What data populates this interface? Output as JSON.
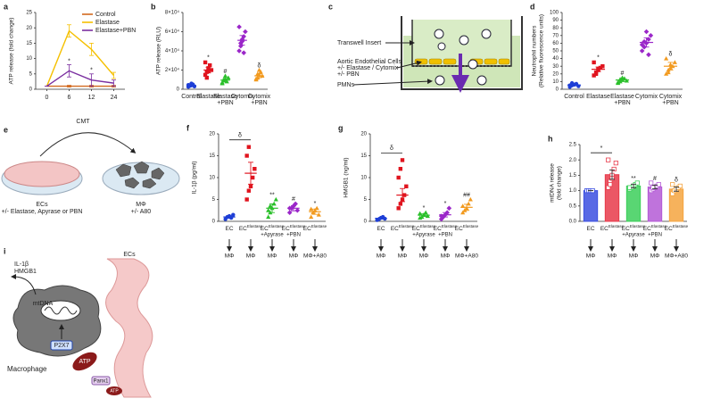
{
  "chart_data": [
    {
      "type": "line",
      "label": "a",
      "ylabel": "ATP release (fold change)",
      "categories": [
        "0",
        "6",
        "12",
        "24"
      ],
      "ylim": [
        0,
        25
      ],
      "yticks": [
        0,
        5,
        10,
        15,
        20,
        25
      ],
      "legend": "upper right",
      "series": [
        {
          "name": "Control",
          "color": "#d2691e",
          "values": [
            1,
            1,
            1,
            1
          ],
          "errors": [
            0,
            0.3,
            0.3,
            0.3
          ],
          "annotations": [
            null,
            null,
            null,
            null
          ]
        },
        {
          "name": "Elastase",
          "color": "#f5c000",
          "values": [
            1,
            19,
            13,
            4.5
          ],
          "errors": [
            0,
            2,
            2,
            1
          ],
          "annotations": [
            null,
            null,
            null,
            null
          ]
        },
        {
          "name": "Elastase+PBN",
          "color": "#7b2fa0",
          "values": [
            1,
            6,
            3,
            2
          ],
          "errors": [
            0,
            2,
            2,
            1
          ],
          "annotations": [
            null,
            "*",
            "*",
            null
          ]
        }
      ]
    },
    {
      "type": "dotplot",
      "label": "b",
      "ylabel": "ATP release (RLU)",
      "ylim": [
        0,
        80000
      ],
      "yticks": [
        0,
        {
          "value": 20000,
          "label": "2×10⁴"
        },
        {
          "value": 40000,
          "label": "4×10⁴"
        },
        {
          "value": 60000,
          "label": "6×10⁴"
        },
        {
          "value": 80000,
          "label": "8×10⁴"
        }
      ],
      "categories": [
        [
          "Control"
        ],
        [
          "Elastase"
        ],
        [
          "Elastase",
          "+PBN"
        ],
        [
          "Cytomix"
        ],
        [
          "Cytomix",
          "+PBN"
        ]
      ],
      "colors": [
        "#1f3fd6",
        "#e0141e",
        "#2bc02b",
        "#9b27c9",
        "#f29a1f"
      ],
      "points": [
        [
          2500,
          3500,
          4000,
          5000,
          3000,
          4500,
          3800,
          6000
        ],
        [
          15000,
          18000,
          22000,
          25000,
          20000,
          28000,
          12000,
          19000
        ],
        [
          6000,
          9000,
          11000,
          8000,
          12000,
          7000,
          10000,
          14000
        ],
        [
          40000,
          45000,
          50000,
          55000,
          60000,
          65000,
          48000,
          52000,
          38000
        ],
        [
          10000,
          12000,
          15000,
          18000,
          14000,
          11000,
          16000,
          20000
        ]
      ],
      "means": [
        4000,
        20000,
        9500,
        51000,
        14000
      ],
      "errors": [
        800,
        3000,
        1500,
        5000,
        2000
      ],
      "annotations": [
        null,
        "*",
        "#",
        null,
        "δ"
      ]
    },
    {
      "type": "dotplot",
      "label": "d",
      "ylabel": [
        "Neutrophil numbers",
        "(Relative fluorescence units)"
      ],
      "ylim": [
        0,
        100
      ],
      "yticks": [
        0,
        10,
        20,
        30,
        40,
        50,
        60,
        70,
        80,
        90,
        100
      ],
      "categories": [
        [
          "Control"
        ],
        [
          "Elastase"
        ],
        [
          "Elastase",
          "+PBN"
        ],
        [
          "Cytomix"
        ],
        [
          "Cytomix",
          "+PBN"
        ]
      ],
      "colors": [
        "#1f3fd6",
        "#e0141e",
        "#2bc02b",
        "#9b27c9",
        "#f29a1f"
      ],
      "points": [
        [
          3,
          5,
          6,
          7,
          4,
          5,
          8,
          6
        ],
        [
          18,
          22,
          25,
          28,
          30,
          35,
          20,
          26
        ],
        [
          8,
          10,
          12,
          14,
          11,
          9,
          13,
          15
        ],
        [
          50,
          55,
          60,
          65,
          70,
          58,
          62,
          75,
          45
        ],
        [
          20,
          25,
          28,
          30,
          35,
          40,
          22,
          32
        ]
      ],
      "means": [
        5.5,
        26,
        12,
        61,
        30
      ],
      "errors": [
        1,
        3,
        2,
        6,
        5
      ],
      "annotations": [
        null,
        "*",
        "#",
        null,
        "δ"
      ]
    },
    {
      "type": "dotplot",
      "label": "f",
      "ylabel": "IL-1β (pg/ml)",
      "ylim": [
        0,
        20
      ],
      "yticks": [
        0,
        5,
        10,
        15,
        20
      ],
      "categories": [
        {
          "base": "EC"
        },
        {
          "base": "EC",
          "sup": "Elastase"
        },
        {
          "base": "EC",
          "sup": "Elastase",
          "sub": "+Apyrase"
        },
        {
          "base": "EC",
          "sup": "Elastase",
          "sub": "+PBN"
        },
        {
          "base": "EC",
          "sup": "Elastase"
        }
      ],
      "targets": [
        "MΦ",
        "MΦ",
        "MΦ",
        "MΦ",
        "MΦ+A80"
      ],
      "colors": [
        "#1f3fd6",
        "#e0141e",
        "#2bc02b",
        "#9b27c9",
        "#f29a1f"
      ],
      "points": [
        [
          0.5,
          1,
          1.2,
          0.8,
          1.5
        ],
        [
          5,
          7,
          8,
          10,
          12,
          15,
          17
        ],
        [
          1,
          2,
          3,
          4,
          5,
          2.5,
          3.5
        ],
        [
          2,
          3,
          3.5,
          4,
          2.5,
          3
        ],
        [
          1,
          2,
          2.5,
          3,
          1.5,
          2.8
        ]
      ],
      "means": [
        1,
        11,
        3,
        3,
        2.2
      ],
      "errors": [
        0.3,
        2.5,
        1,
        0.6,
        0.6
      ],
      "annotations": [
        null,
        null,
        "**",
        "#",
        "*"
      ],
      "bracket_label": "δ"
    },
    {
      "type": "dotplot",
      "label": "g",
      "ylabel": "HMGB1 (ng/ml)",
      "ylim": [
        0,
        20
      ],
      "yticks": [
        0,
        5,
        10,
        15,
        20
      ],
      "categories": [
        {
          "base": "EC"
        },
        {
          "base": "EC",
          "sup": "Elastase"
        },
        {
          "base": "EC",
          "sup": "Elastase",
          "sub": "+Apyrase"
        },
        {
          "base": "EC",
          "sup": "Elastase",
          "sub": "+PBN"
        },
        {
          "base": "EC",
          "sup": "Elastase"
        }
      ],
      "targets": [
        "MΦ",
        "MΦ",
        "MΦ",
        "MΦ",
        "MΦ+A80"
      ],
      "colors": [
        "#1f3fd6",
        "#e0141e",
        "#2bc02b",
        "#9b27c9",
        "#f29a1f"
      ],
      "points": [
        [
          0.3,
          0.5,
          0.8,
          1,
          0.6
        ],
        [
          3,
          4,
          5,
          6,
          8,
          10,
          12,
          14
        ],
        [
          0.8,
          1,
          1.5,
          2,
          1.2,
          1.8
        ],
        [
          0.5,
          1,
          1.5,
          2,
          3,
          1.2
        ],
        [
          2,
          2.5,
          3,
          4,
          5,
          3.5
        ]
      ],
      "means": [
        0.7,
        6,
        1.4,
        1.5,
        3.2
      ],
      "errors": [
        0.2,
        1.5,
        0.3,
        0.5,
        0.7
      ],
      "annotations": [
        null,
        null,
        "*",
        "*",
        "##"
      ],
      "bracket_label": "δ"
    },
    {
      "type": "bardot",
      "label": "h",
      "ylabel": [
        "mtDNA release",
        "(fold change)"
      ],
      "ylim": [
        0,
        2.5
      ],
      "yticks": [
        {
          "value": 0,
          "label": "0.0"
        },
        0.5,
        {
          "value": 1,
          "label": "1.0"
        },
        1.5,
        {
          "value": 2,
          "label": "2.0"
        },
        2.5
      ],
      "categories": [
        {
          "base": "EC"
        },
        {
          "base": "EC",
          "sup": "Elastase"
        },
        {
          "base": "EC",
          "sup": "Elastase",
          "sub": "+Apyrase"
        },
        {
          "base": "EC",
          "sup": "Elastase",
          "sub": "+PBN"
        },
        {
          "base": "EC",
          "sup": "Elastase"
        }
      ],
      "targets": [
        "MΦ",
        "MΦ",
        "MΦ",
        "MΦ",
        "MΦ+A80"
      ],
      "colors": [
        "#3b4fe0",
        "#e83a4a",
        "#3ccf5a",
        "#b45ad6",
        "#f5a540"
      ],
      "points": [
        [
          1,
          1,
          1,
          1
        ],
        [
          1.1,
          1.3,
          1.5,
          1.7,
          1.9,
          2.0,
          1.2,
          1.4
        ],
        [
          1.05,
          1.1,
          1.15,
          1.2,
          1.25,
          1.1
        ],
        [
          1.0,
          1.05,
          1.1,
          1.15,
          1.2,
          1.25,
          1.1
        ],
        [
          0.9,
          1.0,
          1.05,
          1.1,
          1.15,
          1.2
        ]
      ],
      "means": [
        1.0,
        1.52,
        1.15,
        1.12,
        1.05
      ],
      "errors": [
        0,
        0.15,
        0.06,
        0.06,
        0.07
      ],
      "annotations": [
        null,
        null,
        "**",
        "#",
        "δ"
      ],
      "bracket_label": "*"
    }
  ],
  "diagrams": {
    "c": {
      "label": "c",
      "transwell": "Transwell Insert",
      "cells": [
        "Aortic Endothelial Cells",
        "+/- Elastase / Cytomix",
        "+/- PBN"
      ],
      "pmns": "PMNs"
    },
    "e": {
      "label": "e",
      "cmt": "CMT",
      "left": [
        "ECs",
        "+/- Elastase, Apyrase or PBN"
      ],
      "right": [
        "MΦ",
        "+/- A80"
      ]
    },
    "i": {
      "label": "i",
      "cytokines": [
        "IL-1β",
        "HMGB1"
      ],
      "mtdna": "mtDNA",
      "p2x7": "P2X7",
      "macrophage": "Macrophage",
      "atp": "ATP",
      "panx1": "Panx1",
      "atp_small": "ATP",
      "ecs": "ECs"
    }
  }
}
